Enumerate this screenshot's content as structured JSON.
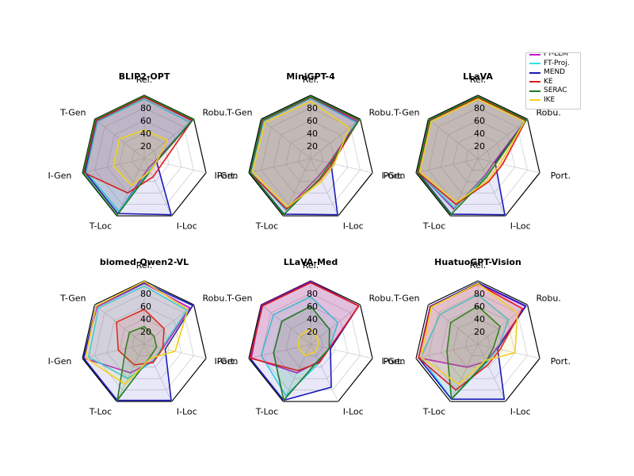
{
  "chart_data": [
    {
      "type": "radar",
      "title": "BLIP2-OPT",
      "axes": [
        "Rel.",
        "Robu.",
        "Port.",
        "I-Loc",
        "T-Loc",
        "I-Gen",
        "T-Gen"
      ],
      "r_ticks": [
        "20",
        "40",
        "60",
        "80"
      ],
      "rlim": [
        0,
        100
      ],
      "series": [
        {
          "name": "FT-LLM",
          "values": [
            97,
            96,
            18,
            16,
            96,
            96,
            96
          ]
        },
        {
          "name": "FT-Proj.",
          "values": [
            94,
            92,
            20,
            20,
            92,
            94,
            94
          ]
        },
        {
          "name": "MEND",
          "values": [
            97,
            97,
            20,
            98,
            96,
            96,
            97
          ]
        },
        {
          "name": "KE",
          "values": [
            97,
            97,
            30,
            32,
            60,
            98,
            97
          ]
        },
        {
          "name": "SERAC",
          "values": [
            99,
            99,
            20,
            22,
            99,
            99,
            99
          ]
        },
        {
          "name": "IKE",
          "values": [
            45,
            47,
            20,
            22,
            47,
            50,
            50
          ]
        }
      ]
    },
    {
      "type": "radar",
      "title": "MiniGPT-4",
      "axes": [
        "Rel.",
        "Robu.",
        "Port.",
        "I-Loc",
        "T-Loc",
        "I-Gen",
        "T-Gen"
      ],
      "r_ticks": [
        "20",
        "40",
        "60",
        "80"
      ],
      "rlim": [
        0,
        100
      ],
      "series": [
        {
          "name": "FT-LLM",
          "values": [
            96,
            94,
            30,
            30,
            88,
            98,
            96
          ]
        },
        {
          "name": "FT-Proj.",
          "values": [
            95,
            92,
            36,
            36,
            90,
            97,
            95
          ]
        },
        {
          "name": "MEND",
          "values": [
            97,
            98,
            33,
            98,
            97,
            98,
            97
          ]
        },
        {
          "name": "KE",
          "values": [
            97,
            97,
            35,
            36,
            88,
            98,
            97
          ]
        },
        {
          "name": "SERAC",
          "values": [
            98,
            98,
            32,
            34,
            98,
            98,
            98
          ]
        },
        {
          "name": "IKE",
          "values": [
            90,
            78,
            38,
            40,
            84,
            94,
            92
          ]
        }
      ]
    },
    {
      "type": "radar",
      "title": "LLaVA",
      "axes": [
        "Rel.",
        "Robu.",
        "Port.",
        "I-Loc",
        "T-Loc",
        "I-Gen",
        "T-Gen"
      ],
      "r_ticks": [
        "20",
        "40",
        "60",
        "80"
      ],
      "rlim": [
        0,
        100
      ],
      "series": [
        {
          "name": "FT-LLM",
          "values": [
            96,
            96,
            26,
            28,
            88,
            96,
            96
          ]
        },
        {
          "name": "FT-Proj.",
          "values": [
            95,
            94,
            30,
            30,
            86,
            96,
            95
          ]
        },
        {
          "name": "MEND",
          "values": [
            97,
            97,
            28,
            98,
            97,
            97,
            97
          ]
        },
        {
          "name": "KE",
          "values": [
            96,
            97,
            40,
            40,
            80,
            97,
            97
          ]
        },
        {
          "name": "SERAC",
          "values": [
            98,
            98,
            30,
            32,
            98,
            98,
            98
          ]
        },
        {
          "name": "IKE",
          "values": [
            94,
            94,
            36,
            38,
            76,
            94,
            94
          ]
        }
      ]
    },
    {
      "type": "radar",
      "title": "biomed-Qwen2-VL",
      "axes": [
        "Rel.",
        "Robu.",
        "Port.",
        "I-Loc",
        "T-Loc",
        "I-Gen",
        "T-Gen"
      ],
      "r_ticks": [
        "20",
        "40",
        "60",
        "80"
      ],
      "rlim": [
        0,
        100
      ],
      "series": [
        {
          "name": "FT-LLM",
          "values": [
            96,
            92,
            30,
            30,
            50,
            98,
            95
          ]
        },
        {
          "name": "FT-Proj.",
          "values": [
            92,
            86,
            28,
            30,
            60,
            90,
            92
          ]
        },
        {
          "name": "MEND",
          "values": [
            97,
            98,
            34,
            98,
            98,
            98,
            97
          ]
        },
        {
          "name": "KE",
          "values": [
            55,
            40,
            30,
            32,
            36,
            42,
            56
          ]
        },
        {
          "name": "SERAC",
          "values": [
            28,
            20,
            20,
            22,
            98,
            30,
            30
          ]
        },
        {
          "name": "IKE",
          "values": [
            99,
            88,
            50,
            24,
            70,
            95,
            97
          ]
        }
      ]
    },
    {
      "type": "radar",
      "title": "LLaVA-Med",
      "axes": [
        "Rel.",
        "Robu.",
        "Port.",
        "I-Loc",
        "T-Loc",
        "I-Gen",
        "T-Gen"
      ],
      "r_ticks": [
        "20",
        "40",
        "60",
        "80"
      ],
      "rlim": [
        0,
        100
      ],
      "series": [
        {
          "name": "FT-LLM",
          "values": [
            99,
            97,
            30,
            30,
            50,
            96,
            99
          ]
        },
        {
          "name": "FT-Proj.",
          "values": [
            75,
            55,
            30,
            32,
            90,
            80,
            75
          ]
        },
        {
          "name": "MEND",
          "values": [
            98,
            97,
            32,
            75,
            98,
            98,
            98
          ]
        },
        {
          "name": "KE",
          "values": [
            97,
            97,
            30,
            32,
            46,
            98,
            97
          ]
        },
        {
          "name": "SERAC",
          "values": [
            60,
            38,
            30,
            28,
            98,
            60,
            58
          ]
        },
        {
          "name": "IKE",
          "values": [
            25,
            15,
            12,
            14,
            20,
            20,
            22
          ]
        }
      ]
    },
    {
      "type": "radar",
      "title": "HuatuoGPT-Vision",
      "axes": [
        "Rel.",
        "Robu.",
        "Port.",
        "I-Loc",
        "T-Loc",
        "I-Gen",
        "T-Gen"
      ],
      "r_ticks": [
        "20",
        "40",
        "60",
        "80"
      ],
      "rlim": [
        0,
        100
      ],
      "series": [
        {
          "name": "FT-LLM",
          "values": [
            96,
            96,
            30,
            30,
            40,
            96,
            96
          ]
        },
        {
          "name": "FT-Proj.",
          "values": [
            78,
            62,
            32,
            32,
            96,
            92,
            76
          ]
        },
        {
          "name": "MEND",
          "values": [
            97,
            97,
            32,
            96,
            96,
            96,
            96
          ]
        },
        {
          "name": "KE",
          "values": [
            95,
            90,
            36,
            36,
            80,
            96,
            95
          ]
        },
        {
          "name": "SERAC",
          "values": [
            60,
            45,
            25,
            30,
            96,
            50,
            55
          ]
        },
        {
          "name": "IKE",
          "values": [
            96,
            80,
            60,
            28,
            70,
            92,
            94
          ]
        }
      ]
    }
  ],
  "legend": {
    "position": "top-right",
    "items": [
      {
        "label": "FT-LLM",
        "color": "#cc11cc"
      },
      {
        "label": "FT-Proj.",
        "color": "#33e0e8"
      },
      {
        "label": "MEND",
        "color": "#1a1ab8"
      },
      {
        "label": "KE",
        "color": "#e01a1a"
      },
      {
        "label": "SERAC",
        "color": "#1f7a1f"
      },
      {
        "label": "IKE",
        "color": "#f0d020"
      }
    ]
  }
}
